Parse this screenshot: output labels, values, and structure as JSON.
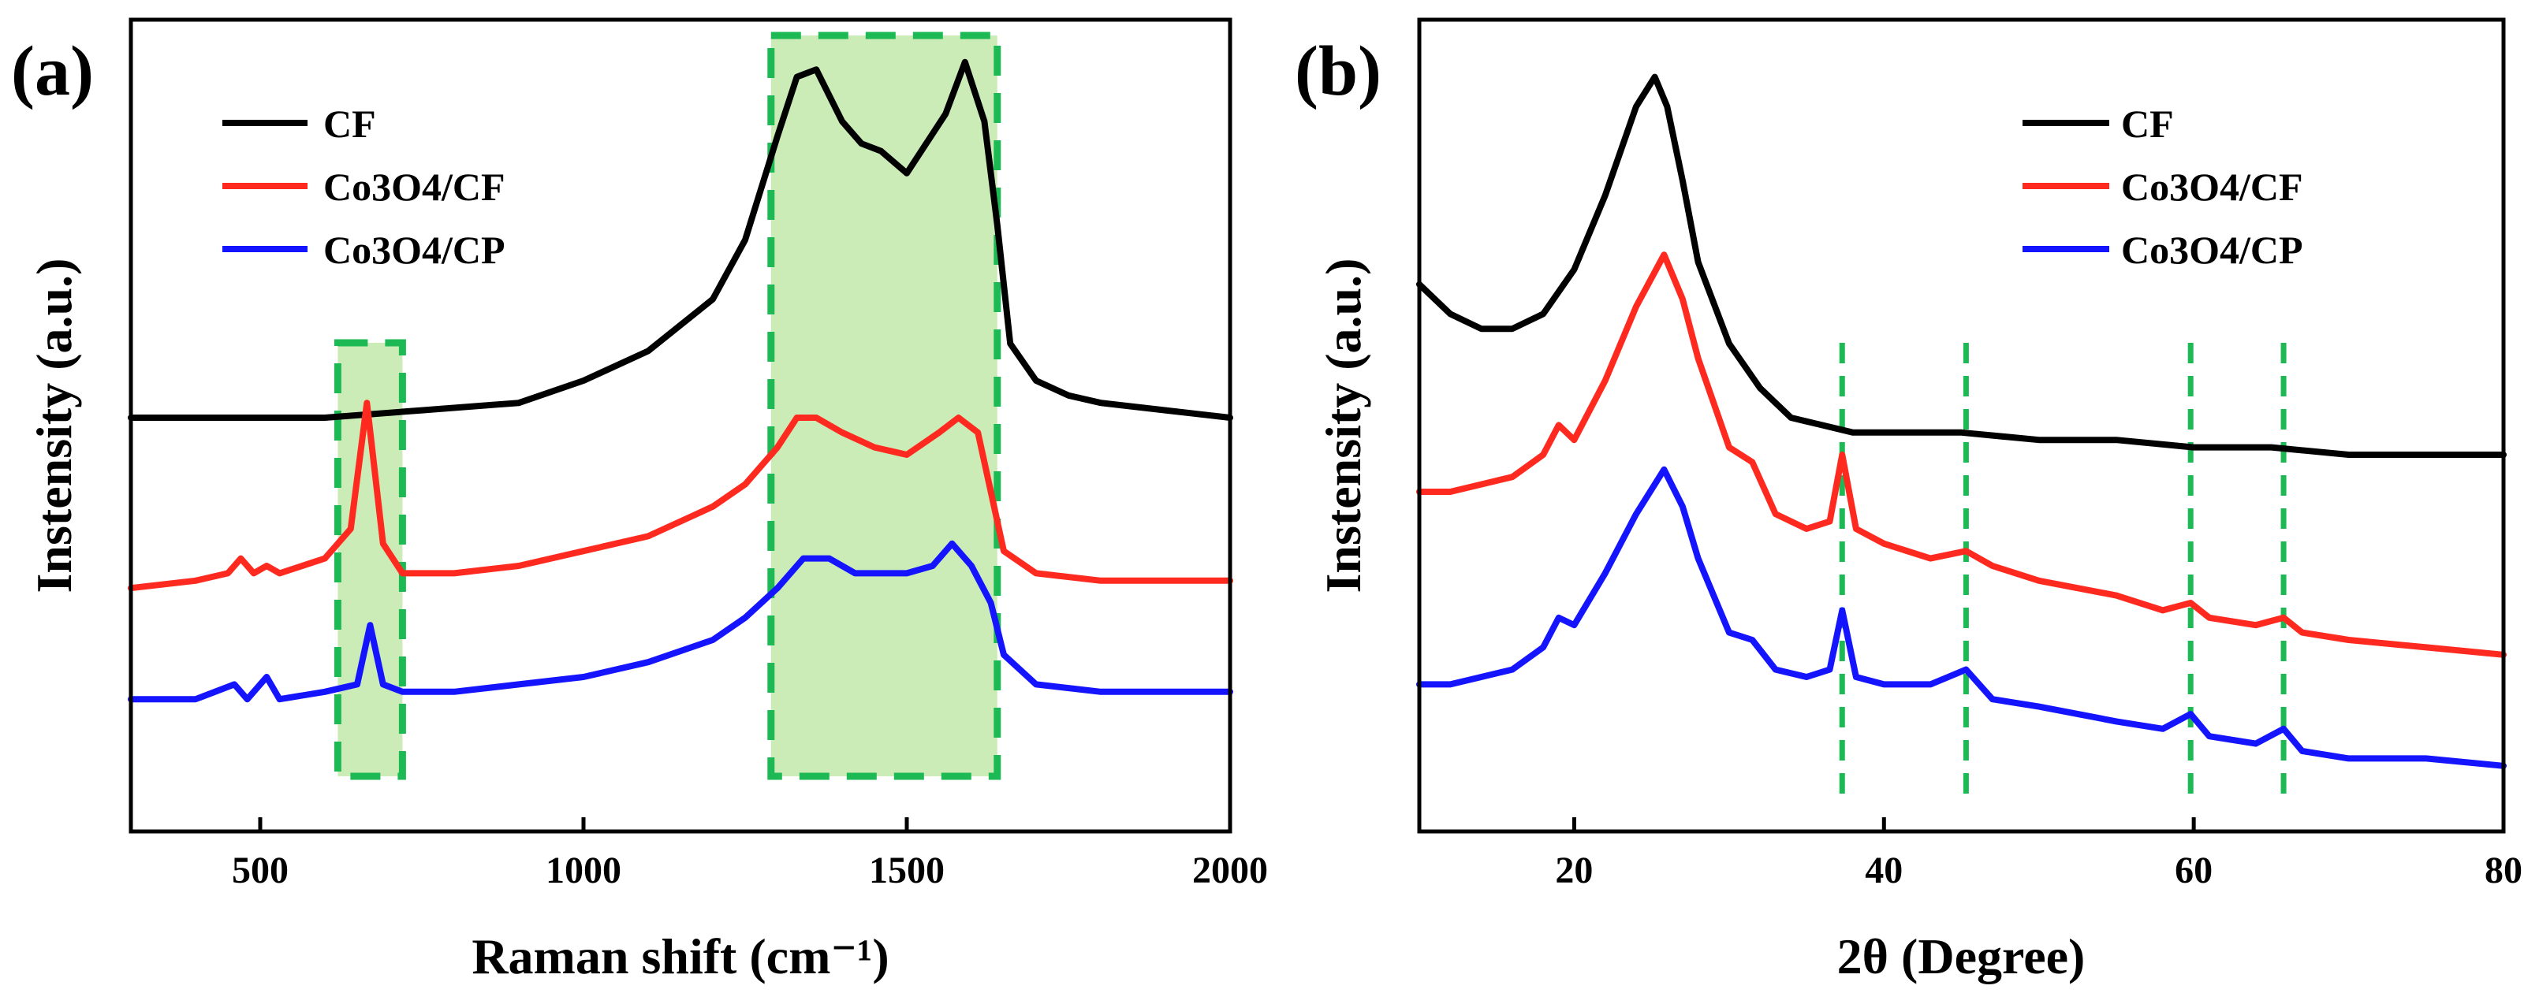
{
  "chart_data": [
    {
      "type": "line",
      "panel_label": "(a)",
      "title": "",
      "xlabel": "Raman shift (cm⁻¹)",
      "ylabel": "Instensity (a.u.)",
      "xlim": [
        300,
        2000
      ],
      "ylim": [
        0,
        1
      ],
      "x_ticks": [
        500,
        1000,
        1500,
        2000
      ],
      "x_tick_labels": [
        "500",
        "1000",
        "1500",
        "2000"
      ],
      "y_ticks_shown": false,
      "legend_position": "top-left",
      "highlight_regions": [
        {
          "x_range": [
            620,
            720
          ],
          "color": "#c9ebb3",
          "border": "#1db954"
        },
        {
          "x_range": [
            1290,
            1640
          ],
          "color": "#c9ebb3",
          "border": "#1db954"
        }
      ],
      "series": [
        {
          "name": "CF",
          "color": "#000000",
          "x": [
            300,
            450,
            600,
            750,
            900,
            1000,
            1100,
            1200,
            1250,
            1300,
            1330,
            1360,
            1400,
            1430,
            1460,
            1500,
            1530,
            1560,
            1590,
            1620,
            1640,
            1660,
            1700,
            1750,
            1800,
            1900,
            2000
          ],
          "y": [
            0.5,
            0.5,
            0.5,
            0.51,
            0.52,
            0.55,
            0.59,
            0.66,
            0.74,
            0.88,
            0.96,
            0.97,
            0.9,
            0.87,
            0.86,
            0.83,
            0.87,
            0.91,
            0.98,
            0.9,
            0.76,
            0.6,
            0.55,
            0.53,
            0.52,
            0.51,
            0.5
          ]
        },
        {
          "name": "Co3O4/CF",
          "color": "#ff2a1f",
          "x": [
            300,
            400,
            450,
            470,
            490,
            510,
            530,
            600,
            640,
            665,
            690,
            720,
            800,
            900,
            1000,
            1100,
            1200,
            1250,
            1300,
            1330,
            1360,
            1400,
            1450,
            1500,
            1550,
            1580,
            1610,
            1630,
            1650,
            1700,
            1800,
            1900,
            2000
          ],
          "y": [
            0.27,
            0.28,
            0.29,
            0.31,
            0.29,
            0.3,
            0.29,
            0.31,
            0.35,
            0.52,
            0.33,
            0.29,
            0.29,
            0.3,
            0.32,
            0.34,
            0.38,
            0.41,
            0.46,
            0.5,
            0.5,
            0.48,
            0.46,
            0.45,
            0.48,
            0.5,
            0.48,
            0.4,
            0.32,
            0.29,
            0.28,
            0.28,
            0.28
          ]
        },
        {
          "name": "Co3O4/CP",
          "color": "#1414ff",
          "x": [
            300,
            400,
            460,
            480,
            500,
            510,
            530,
            600,
            650,
            670,
            690,
            720,
            800,
            900,
            1000,
            1100,
            1200,
            1250,
            1300,
            1340,
            1380,
            1420,
            1460,
            1500,
            1540,
            1570,
            1600,
            1630,
            1650,
            1700,
            1800,
            1900,
            2000
          ],
          "y": [
            0.12,
            0.12,
            0.14,
            0.12,
            0.14,
            0.15,
            0.12,
            0.13,
            0.14,
            0.22,
            0.14,
            0.13,
            0.13,
            0.14,
            0.15,
            0.17,
            0.2,
            0.23,
            0.27,
            0.31,
            0.31,
            0.29,
            0.29,
            0.29,
            0.3,
            0.33,
            0.3,
            0.25,
            0.18,
            0.14,
            0.13,
            0.13,
            0.13
          ]
        }
      ]
    },
    {
      "type": "line",
      "panel_label": "(b)",
      "title": "",
      "xlabel": "2θ (Degree)",
      "ylabel": "Instensity (a.u.)",
      "xlim": [
        10,
        80
      ],
      "ylim": [
        0,
        1
      ],
      "x_ticks": [
        20,
        40,
        60,
        80
      ],
      "x_tick_labels": [
        "20",
        "40",
        "60",
        "80"
      ],
      "y_ticks_shown": false,
      "legend_position": "top-right",
      "reference_lines_x": [
        37.3,
        45.3,
        59.8,
        65.8
      ],
      "reference_line_color": "#1db954",
      "series": [
        {
          "name": "CF",
          "color": "#000000",
          "x": [
            10,
            12,
            14,
            16,
            18,
            20,
            22,
            24,
            25.2,
            26,
            27,
            28,
            30,
            32,
            34,
            36,
            38,
            40,
            45,
            50,
            55,
            60,
            65,
            70,
            75,
            80
          ],
          "y": [
            0.68,
            0.64,
            0.62,
            0.62,
            0.64,
            0.7,
            0.8,
            0.92,
            0.96,
            0.92,
            0.82,
            0.71,
            0.6,
            0.54,
            0.5,
            0.49,
            0.48,
            0.48,
            0.48,
            0.47,
            0.47,
            0.46,
            0.46,
            0.45,
            0.45,
            0.45
          ]
        },
        {
          "name": "Co3O4/CF",
          "color": "#ff2a1f",
          "x": [
            10,
            12,
            14,
            16,
            18,
            19,
            20,
            22,
            24,
            25.8,
            27,
            28,
            30,
            31.5,
            33,
            35,
            36.5,
            37.3,
            38.2,
            40,
            43,
            45.3,
            47,
            50,
            55,
            58,
            59.8,
            61,
            64,
            65.8,
            67,
            70,
            75,
            80
          ],
          "y": [
            0.4,
            0.4,
            0.41,
            0.42,
            0.45,
            0.49,
            0.47,
            0.55,
            0.65,
            0.72,
            0.66,
            0.58,
            0.46,
            0.44,
            0.37,
            0.35,
            0.36,
            0.45,
            0.35,
            0.33,
            0.31,
            0.32,
            0.3,
            0.28,
            0.26,
            0.24,
            0.25,
            0.23,
            0.22,
            0.23,
            0.21,
            0.2,
            0.19,
            0.18
          ]
        },
        {
          "name": "Co3O4/CP",
          "color": "#1414ff",
          "x": [
            10,
            12,
            14,
            16,
            18,
            19,
            20,
            22,
            24,
            25.8,
            27,
            28,
            30,
            31.5,
            33,
            35,
            36.5,
            37.3,
            38.2,
            40,
            43,
            45.3,
            47,
            50,
            55,
            58,
            59.8,
            61,
            64,
            65.8,
            67,
            70,
            75,
            80
          ],
          "y": [
            0.14,
            0.14,
            0.15,
            0.16,
            0.19,
            0.23,
            0.22,
            0.29,
            0.37,
            0.43,
            0.38,
            0.31,
            0.21,
            0.2,
            0.16,
            0.15,
            0.16,
            0.24,
            0.15,
            0.14,
            0.14,
            0.16,
            0.12,
            0.11,
            0.09,
            0.08,
            0.1,
            0.07,
            0.06,
            0.08,
            0.05,
            0.04,
            0.04,
            0.03
          ]
        }
      ]
    }
  ]
}
